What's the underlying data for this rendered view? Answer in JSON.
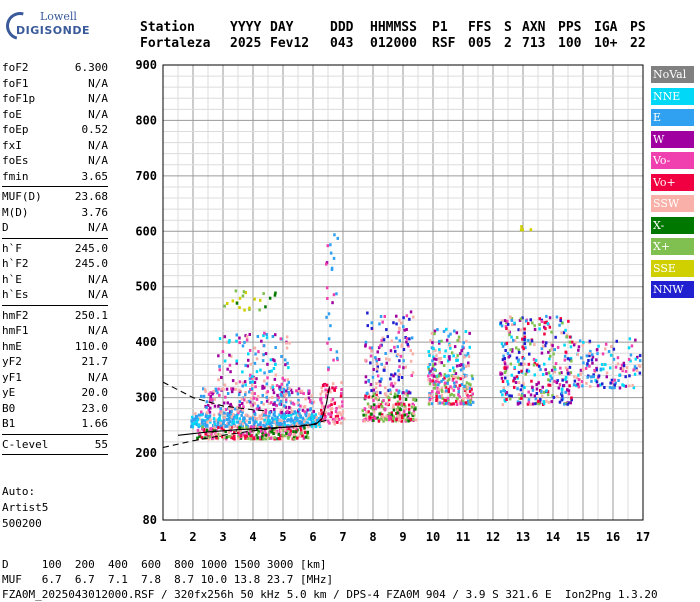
{
  "logo": {
    "line1": "Lowell",
    "line2": "DIGISONDE"
  },
  "header": {
    "labels": [
      "Station",
      "YYYY",
      "DAY",
      "DDD",
      "HHMMSS",
      "P1",
      "FFS",
      "S",
      "AXN",
      "PPS",
      "IGA",
      "PS"
    ],
    "values": [
      "Fortaleza",
      "2025",
      "Fev12",
      "043",
      "012000",
      "RSF",
      "005",
      "2",
      "713",
      "100",
      "10+",
      "22"
    ]
  },
  "params_group1": [
    {
      "name": "foF2",
      "value": "6.300"
    },
    {
      "name": "foF1",
      "value": "N/A"
    },
    {
      "name": "foF1p",
      "value": "N/A"
    },
    {
      "name": "foE",
      "value": "N/A"
    },
    {
      "name": "foEp",
      "value": "0.52"
    },
    {
      "name": "fxI",
      "value": "N/A"
    },
    {
      "name": "foEs",
      "value": "N/A"
    },
    {
      "name": "fmin",
      "value": "3.65"
    }
  ],
  "params_group2": [
    {
      "name": "MUF(D)",
      "value": "23.68"
    },
    {
      "name": "M(D)",
      "value": "3.76"
    },
    {
      "name": "D",
      "value": "N/A"
    }
  ],
  "params_group3": [
    {
      "name": "h`F",
      "value": "245.0"
    },
    {
      "name": "h`F2",
      "value": "245.0"
    },
    {
      "name": "h`E",
      "value": "N/A"
    },
    {
      "name": "h`Es",
      "value": "N/A"
    }
  ],
  "params_group4": [
    {
      "name": "hmF2",
      "value": "250.1"
    },
    {
      "name": "hmF1",
      "value": "N/A"
    },
    {
      "name": "hmE",
      "value": "110.0"
    },
    {
      "name": "yF2",
      "value": "21.7"
    },
    {
      "name": "yF1",
      "value": "N/A"
    },
    {
      "name": "yE",
      "value": "20.0"
    },
    {
      "name": "B0",
      "value": "23.0"
    },
    {
      "name": "B1",
      "value": "1.66"
    }
  ],
  "params_group5": [
    {
      "name": "C-level",
      "value": "55"
    }
  ],
  "auto": {
    "line1": "Auto:",
    "line2": "Artist5",
    "line3": "500200"
  },
  "footer": {
    "d_line": "D     100  200  400  600  800 1000 1500 3000 [km]",
    "muf_line": "MUF   6.7  6.7  7.1  7.8  8.7 10.0 13.8 23.7 [MHz]",
    "file_line": "FZA0M_2025043012000.RSF / 320fx256h 50 kHz 5.0 km / DPS-4 FZA0M 904 / 3.9 S 321.6 E  Ion2Png 1.3.20"
  },
  "legend": [
    {
      "label": "NoVal",
      "color": "#808080"
    },
    {
      "label": "NNE",
      "color": "#00d8f8"
    },
    {
      "label": "E",
      "color": "#30a0f0"
    },
    {
      "label": "W",
      "color": "#a000a0"
    },
    {
      "label": "Vo-",
      "color": "#f040b0"
    },
    {
      "label": "Vo+",
      "color": "#f00040"
    },
    {
      "label": "SSW",
      "color": "#f8b0a8"
    },
    {
      "label": "X-",
      "color": "#007800"
    },
    {
      "label": "X+",
      "color": "#80c050"
    },
    {
      "label": "SSE",
      "color": "#d0d000"
    },
    {
      "label": "NNW",
      "color": "#2020d0"
    }
  ],
  "chart_data": {
    "type": "scatter",
    "xlim": [
      1,
      17
    ],
    "ylim": [
      80,
      900
    ],
    "x_ticks": [
      "1",
      "2",
      "3",
      "4",
      "5",
      "6",
      "7",
      "8",
      "9",
      "10",
      "11",
      "12",
      "13",
      "14",
      "15",
      "16",
      "17"
    ],
    "y_ticks": [
      {
        "v": 80,
        "label": "80"
      },
      {
        "v": 200,
        "label": "200"
      },
      {
        "v": 300,
        "label": "300"
      },
      {
        "v": 400,
        "label": "400"
      },
      {
        "v": 500,
        "label": "500"
      },
      {
        "v": 600,
        "label": "600"
      },
      {
        "v": 700,
        "label": "700"
      },
      {
        "v": 800,
        "label": "800"
      },
      {
        "v": 900,
        "label": "900"
      }
    ],
    "y_minor_step": 20,
    "x_minor_step": 0.5,
    "grid": true,
    "clusters": [
      {
        "x": [
          1.9,
          6.3
        ],
        "y": [
          250,
          275
        ],
        "n": 420,
        "colors": [
          "#30a0f0",
          "#00d8f8",
          "#f8b0a8",
          "#30a0f0"
        ]
      },
      {
        "x": [
          2.1,
          5.8
        ],
        "y": [
          228,
          250
        ],
        "n": 260,
        "colors": [
          "#f00040",
          "#f040b0",
          "#007800",
          "#80c050",
          "#f8b0a8"
        ]
      },
      {
        "x": [
          2.2,
          6.0
        ],
        "y": [
          275,
          320
        ],
        "n": 220,
        "colors": [
          "#f8b0a8",
          "#f040b0",
          "#a000a0",
          "#30a0f0"
        ]
      },
      {
        "x": [
          2.8,
          5.2
        ],
        "y": [
          320,
          420
        ],
        "n": 120,
        "colors": [
          "#a000a0",
          "#f040b0",
          "#30a0f0",
          "#f8b0a8",
          "#00d8f8"
        ]
      },
      {
        "x": [
          6.2,
          7.0
        ],
        "y": [
          255,
          330
        ],
        "n": 90,
        "colors": [
          "#f8b0a8",
          "#f00040",
          "#f040b0"
        ]
      },
      {
        "x": [
          7.6,
          9.4
        ],
        "y": [
          260,
          310
        ],
        "n": 200,
        "colors": [
          "#f8b0a8",
          "#f00040",
          "#f040b0",
          "#007800",
          "#80c050"
        ]
      },
      {
        "x": [
          7.7,
          9.3
        ],
        "y": [
          310,
          460
        ],
        "n": 140,
        "colors": [
          "#2020d0",
          "#a000a0",
          "#30a0f0",
          "#f040b0",
          "#f8b0a8"
        ]
      },
      {
        "x": [
          9.8,
          11.3
        ],
        "y": [
          290,
          345
        ],
        "n": 170,
        "colors": [
          "#f8b0a8",
          "#f00040",
          "#f040b0",
          "#80c050",
          "#30a0f0"
        ]
      },
      {
        "x": [
          9.8,
          11.2
        ],
        "y": [
          340,
          430
        ],
        "n": 110,
        "colors": [
          "#30a0f0",
          "#00d8f8",
          "#80c050",
          "#a000a0",
          "#f8b0a8"
        ]
      },
      {
        "x": [
          12.2,
          14.6
        ],
        "y": [
          290,
          450
        ],
        "n": 330,
        "colors": [
          "#30a0f0",
          "#2020d0",
          "#a000a0",
          "#f040b0",
          "#f8b0a8",
          "#00d8f8",
          "#f00040",
          "#80c050"
        ]
      },
      {
        "x": [
          14.6,
          16.9
        ],
        "y": [
          320,
          410
        ],
        "n": 140,
        "colors": [
          "#30a0f0",
          "#f8b0a8",
          "#f040b0",
          "#a000a0",
          "#00d8f8",
          "#2020d0"
        ]
      },
      {
        "x": [
          3.0,
          4.8
        ],
        "y": [
          460,
          500
        ],
        "n": 22,
        "colors": [
          "#d0d000",
          "#80c050",
          "#007800"
        ]
      },
      {
        "x": [
          6.4,
          6.8
        ],
        "y": [
          350,
          600
        ],
        "n": 28,
        "colors": [
          "#a000a0",
          "#f040b0",
          "#30a0f0"
        ]
      },
      {
        "x": [
          12.8,
          13.3
        ],
        "y": [
          605,
          620
        ],
        "n": 4,
        "colors": [
          "#d0d000"
        ]
      }
    ],
    "trace_solid": [
      [
        1.5,
        232
      ],
      [
        2.5,
        238
      ],
      [
        3.5,
        242
      ],
      [
        4.5,
        245
      ],
      [
        5.5,
        248
      ],
      [
        6.1,
        252
      ],
      [
        6.3,
        262
      ],
      [
        6.45,
        290
      ],
      [
        6.55,
        320
      ]
    ],
    "trace_dashed_lower": [
      [
        1,
        210
      ],
      [
        2,
        222
      ],
      [
        3,
        232
      ],
      [
        4,
        240
      ],
      [
        5,
        246
      ],
      [
        6,
        252
      ],
      [
        6.5,
        260
      ]
    ],
    "trace_dashed_upper": [
      [
        1,
        328
      ],
      [
        2,
        300
      ],
      [
        3,
        285
      ],
      [
        4,
        278
      ],
      [
        4.5,
        276
      ]
    ]
  }
}
